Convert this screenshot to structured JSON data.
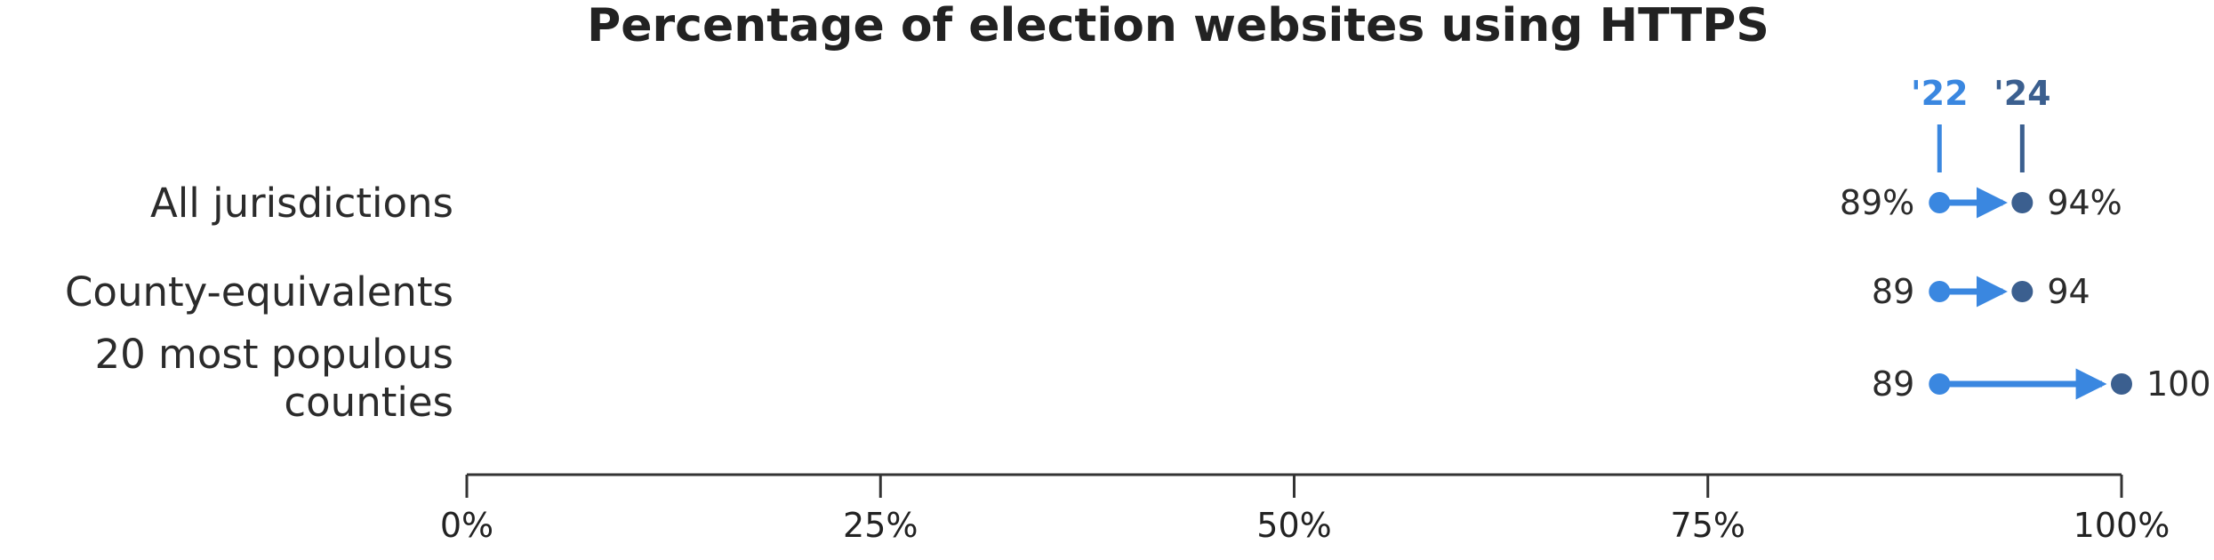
{
  "chart_data": {
    "type": "dumbbell",
    "title": "Percentage of election websites using HTTPS",
    "categories": [
      "All jurisdictions",
      "County-equivalents",
      "20 most populous counties"
    ],
    "series": [
      {
        "name": "'22",
        "values": [
          89,
          89,
          89
        ],
        "labels": [
          "89%",
          "89",
          "89"
        ],
        "color": "#3a87e0"
      },
      {
        "name": "'24",
        "values": [
          94,
          94,
          100
        ],
        "labels": [
          "94%",
          "94",
          "100"
        ],
        "color": "#3b5f8f"
      }
    ],
    "x_ticks": [
      "0%",
      "25%",
      "50%",
      "75%",
      "100%"
    ],
    "xlim": [
      0,
      100
    ],
    "arrow_color": "#3a87e0",
    "axis_color": "#333333",
    "legend_placement": "top, above the '22 and '24 markers of the first row",
    "grid": false
  }
}
